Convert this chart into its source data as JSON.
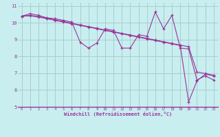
{
  "xlabel": "Windchill (Refroidissement éolien,°C)",
  "xlim": [
    -0.5,
    23.5
  ],
  "ylim": [
    5,
    11.2
  ],
  "yticks": [
    5,
    6,
    7,
    8,
    9,
    10,
    11
  ],
  "xticks": [
    0,
    1,
    2,
    3,
    4,
    5,
    6,
    7,
    8,
    9,
    10,
    11,
    12,
    13,
    14,
    15,
    16,
    17,
    18,
    19,
    20,
    21,
    22,
    23
  ],
  "bg_color": "#c8eef0",
  "line_color": "#993399",
  "grid_color": "#aacccc",
  "series": [
    [
      10.4,
      10.55,
      10.45,
      10.3,
      10.25,
      10.15,
      10.05,
      8.85,
      8.5,
      8.8,
      9.65,
      9.55,
      8.5,
      8.5,
      9.3,
      9.2,
      10.65,
      9.65,
      10.45,
      8.5,
      8.45,
      6.6,
      6.85,
      6.6
    ],
    [
      10.4,
      10.45,
      10.38,
      10.28,
      10.18,
      10.08,
      9.98,
      9.88,
      9.78,
      9.68,
      9.58,
      9.48,
      9.38,
      9.28,
      9.18,
      9.08,
      8.98,
      8.88,
      8.78,
      8.68,
      8.58,
      7.08,
      6.98,
      6.88
    ],
    [
      10.4,
      10.42,
      10.35,
      10.25,
      10.15,
      10.05,
      9.95,
      9.85,
      9.75,
      9.65,
      9.55,
      9.45,
      9.35,
      9.25,
      9.15,
      9.05,
      8.95,
      8.85,
      8.75,
      8.65,
      5.3,
      6.55,
      6.95,
      6.85
    ]
  ]
}
